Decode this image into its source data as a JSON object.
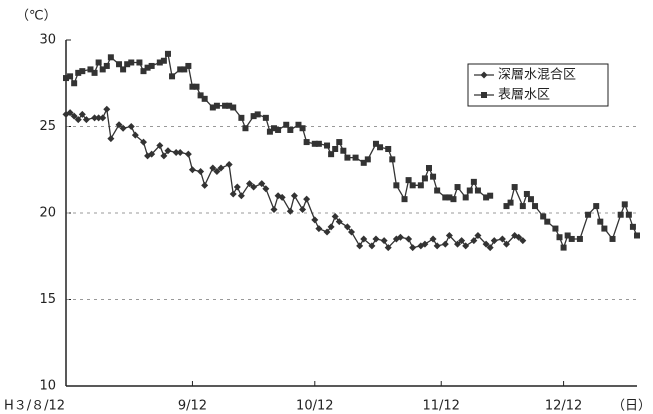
{
  "chart_data": {
    "type": "line",
    "y_unit": "（℃）",
    "x_unit": "（日）",
    "xlim": [
      0,
      140
    ],
    "xticks": [
      {
        "value": 0,
        "label": "H３/８/12"
      },
      {
        "value": 31,
        "label": "9/12"
      },
      {
        "value": 61,
        "label": "10/12"
      },
      {
        "value": 92,
        "label": "11/12"
      },
      {
        "value": 122,
        "label": "12/12"
      }
    ],
    "ylim": [
      10,
      30
    ],
    "yticks": [
      10,
      15,
      20,
      25,
      30
    ],
    "grid": true,
    "legend": "upper right",
    "series": [
      {
        "name": "深層水混合区",
        "color": "#333333",
        "marker": "diamond",
        "x": [
          0,
          1,
          2,
          3,
          4,
          5,
          7,
          8,
          9,
          10,
          11,
          13,
          14,
          16,
          17,
          19,
          20,
          21,
          23,
          24,
          25,
          27,
          28,
          30,
          31,
          33,
          34,
          36,
          37,
          38,
          40,
          41,
          42,
          43,
          45,
          46,
          48,
          49,
          51,
          52,
          53,
          55,
          56,
          58,
          59,
          61,
          62,
          64,
          65,
          66,
          67,
          69,
          70,
          72,
          73,
          75,
          76,
          78,
          79,
          81,
          82,
          84,
          85,
          87,
          88,
          90,
          91,
          93,
          94,
          96,
          97,
          98,
          100,
          101,
          103,
          104,
          105,
          107,
          108,
          110,
          111,
          112
        ],
        "values": [
          25.7,
          25.8,
          25.6,
          25.4,
          25.7,
          25.4,
          25.5,
          25.5,
          25.5,
          26.0,
          24.3,
          25.1,
          24.9,
          25.0,
          24.5,
          24.1,
          23.3,
          23.4,
          23.9,
          23.3,
          23.6,
          23.5,
          23.5,
          23.4,
          22.5,
          22.4,
          21.6,
          22.6,
          22.4,
          22.6,
          22.8,
          21.1,
          21.5,
          21.0,
          21.7,
          21.5,
          21.7,
          21.4,
          20.2,
          21.0,
          20.9,
          20.1,
          21.0,
          20.2,
          20.8,
          19.6,
          19.1,
          18.9,
          19.2,
          19.8,
          19.5,
          19.2,
          18.9,
          18.1,
          18.5,
          18.1,
          18.5,
          18.4,
          18.0,
          18.5,
          18.6,
          18.5,
          18.0,
          18.1,
          18.2,
          18.5,
          18.1,
          18.2,
          18.7,
          18.2,
          18.4,
          18.1,
          18.4,
          18.7,
          18.2,
          18.0,
          18.4,
          18.5,
          18.2,
          18.7,
          18.6,
          18.4
        ]
      },
      {
        "name": "表層水区",
        "color": "#333333",
        "marker": "square",
        "x": [
          0,
          1,
          2,
          3,
          4,
          6,
          7,
          8,
          9,
          10,
          11,
          13,
          14,
          15,
          16,
          18,
          19,
          20,
          21,
          23,
          24,
          25,
          26,
          28,
          29,
          30,
          31,
          32,
          33,
          34,
          36,
          37,
          39,
          40,
          41,
          43,
          44,
          46,
          47,
          49,
          50,
          51,
          52,
          54,
          55,
          57,
          58,
          59,
          61,
          62,
          64,
          65,
          66,
          67,
          68,
          69,
          71,
          73,
          74,
          76,
          77,
          79,
          80,
          81,
          83,
          84,
          85,
          87,
          88,
          89,
          90,
          91,
          93,
          94,
          95,
          96,
          98,
          99,
          100,
          101,
          103,
          104,
          null,
          108,
          109,
          110,
          112,
          113,
          114,
          115,
          117,
          118,
          120,
          121,
          122,
          123,
          124,
          126,
          128,
          130,
          131,
          132,
          134,
          136,
          137,
          138,
          139,
          140
        ],
        "values": [
          27.8,
          27.9,
          27.5,
          28.1,
          28.2,
          28.3,
          28.1,
          28.7,
          28.3,
          28.5,
          29.0,
          28.6,
          28.3,
          28.6,
          28.7,
          28.7,
          28.2,
          28.4,
          28.5,
          28.7,
          28.8,
          29.2,
          27.9,
          28.3,
          28.3,
          28.5,
          27.3,
          27.3,
          26.8,
          26.6,
          26.1,
          26.2,
          26.2,
          26.2,
          26.1,
          25.5,
          24.9,
          25.6,
          25.7,
          25.5,
          24.7,
          24.9,
          24.8,
          25.1,
          24.8,
          25.1,
          24.9,
          24.1,
          24.0,
          24.0,
          23.9,
          23.4,
          23.7,
          24.1,
          23.6,
          23.2,
          23.2,
          22.9,
          23.1,
          24.0,
          23.8,
          23.7,
          23.1,
          21.6,
          20.8,
          21.9,
          21.6,
          21.6,
          22.0,
          22.6,
          22.1,
          21.3,
          20.9,
          20.9,
          20.8,
          21.5,
          20.9,
          21.3,
          21.8,
          21.3,
          20.9,
          21.0,
          null,
          20.4,
          20.6,
          21.5,
          20.4,
          21.1,
          20.8,
          20.4,
          19.8,
          19.5,
          19.1,
          18.6,
          18.0,
          18.7,
          18.5,
          18.5,
          19.9,
          20.4,
          19.5,
          19.1,
          18.5,
          19.9,
          20.5,
          19.9,
          19.2,
          18.7
        ]
      }
    ]
  }
}
